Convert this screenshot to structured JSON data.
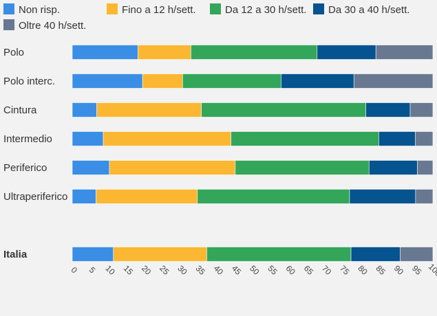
{
  "chart_data": {
    "type": "bar",
    "orientation": "horizontal",
    "stacked": true,
    "xlim": [
      0,
      100
    ],
    "xticks": [
      0,
      5,
      10,
      15,
      20,
      25,
      30,
      35,
      40,
      45,
      50,
      55,
      60,
      65,
      70,
      75,
      80,
      85,
      90,
      95,
      100
    ],
    "grid": false,
    "legend_position": "top",
    "categories": [
      "Polo",
      "Polo interc.",
      "Cintura",
      "Intermedio",
      "Periferico",
      "Ultraperiferico",
      "Italia"
    ],
    "highlighted_category": "Italia",
    "series": [
      {
        "name": "Non risp.",
        "color": "#3a8ee6",
        "values": [
          18.2,
          19.5,
          6.8,
          8.6,
          10.3,
          6.6,
          11.4
        ]
      },
      {
        "name": "Fino a 12 h/sett.",
        "color": "#fbb731",
        "values": [
          14.7,
          11.1,
          29.0,
          35.4,
          34.9,
          28.1,
          25.9
        ]
      },
      {
        "name": "Da 12 a 30 h/sett.",
        "color": "#33a65a",
        "values": [
          35.0,
          27.3,
          45.6,
          41.0,
          37.1,
          42.2,
          40.0
        ]
      },
      {
        "name": "Da 30 a 40 h/sett.",
        "color": "#05538f",
        "values": [
          16.3,
          20.2,
          12.3,
          10.1,
          13.4,
          18.3,
          13.6
        ]
      },
      {
        "name": "Oltre 40 h/sett.",
        "color": "#697891",
        "values": [
          15.8,
          21.9,
          6.3,
          4.9,
          4.3,
          4.8,
          9.1
        ]
      }
    ]
  }
}
